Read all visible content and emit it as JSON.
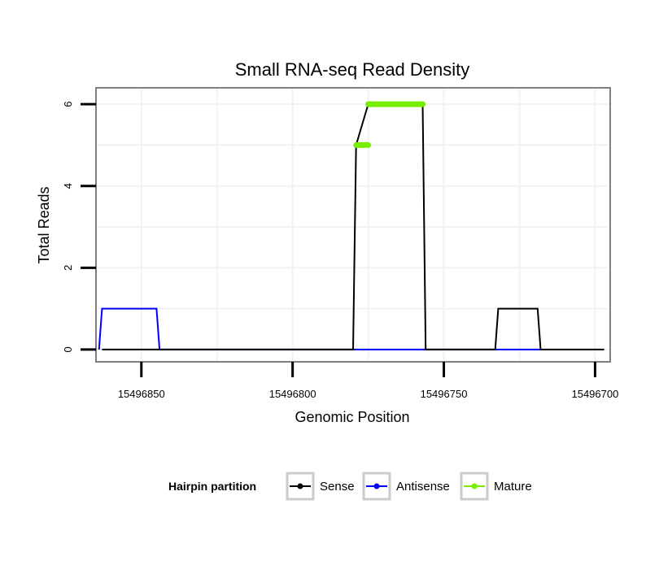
{
  "chart_data": {
    "type": "line",
    "title": "Small RNA-seq Read Density",
    "xlabel": "Genomic Position",
    "ylabel": "Total Reads",
    "x_reversed": true,
    "xlim": [
      15496865,
      15496695
    ],
    "ylim": [
      -0.3,
      6.4
    ],
    "x_ticks": [
      15496850,
      15496800,
      15496750,
      15496700
    ],
    "x_tick_labels": [
      "15496850",
      "15496800",
      "15496750",
      "15496700"
    ],
    "y_ticks": [
      0,
      2,
      4,
      6
    ],
    "y_tick_labels": [
      "0",
      "2",
      "4",
      "6"
    ],
    "grid": true,
    "legend": {
      "title": "Hairpin partition",
      "placement": "bottom",
      "entries": [
        "Sense",
        "Antisense",
        "Mature"
      ]
    },
    "series": [
      {
        "name": "Sense",
        "color": "#000000",
        "x": [
          15496863,
          15496780,
          15496779,
          15496775,
          15496757,
          15496756,
          15496744,
          15496743,
          15496733,
          15496732,
          15496719,
          15496718,
          15496697
        ],
        "y": [
          0,
          0,
          5,
          6,
          6,
          0,
          0,
          0,
          0,
          1,
          1,
          0,
          0
        ]
      },
      {
        "name": "Antisense",
        "color": "#0000ff",
        "x": [
          15496864,
          15496863,
          15496845,
          15496844,
          15496780,
          15496756,
          15496719,
          15496718
        ],
        "y": [
          0,
          1,
          1,
          0,
          0,
          0,
          0,
          0
        ]
      },
      {
        "name": "Mature",
        "color": "#77ee00",
        "segments": [
          {
            "x": [
              15496779,
              15496775
            ],
            "y": [
              5,
              5
            ]
          },
          {
            "x": [
              15496775,
              15496757
            ],
            "y": [
              6,
              6
            ]
          }
        ]
      }
    ]
  }
}
